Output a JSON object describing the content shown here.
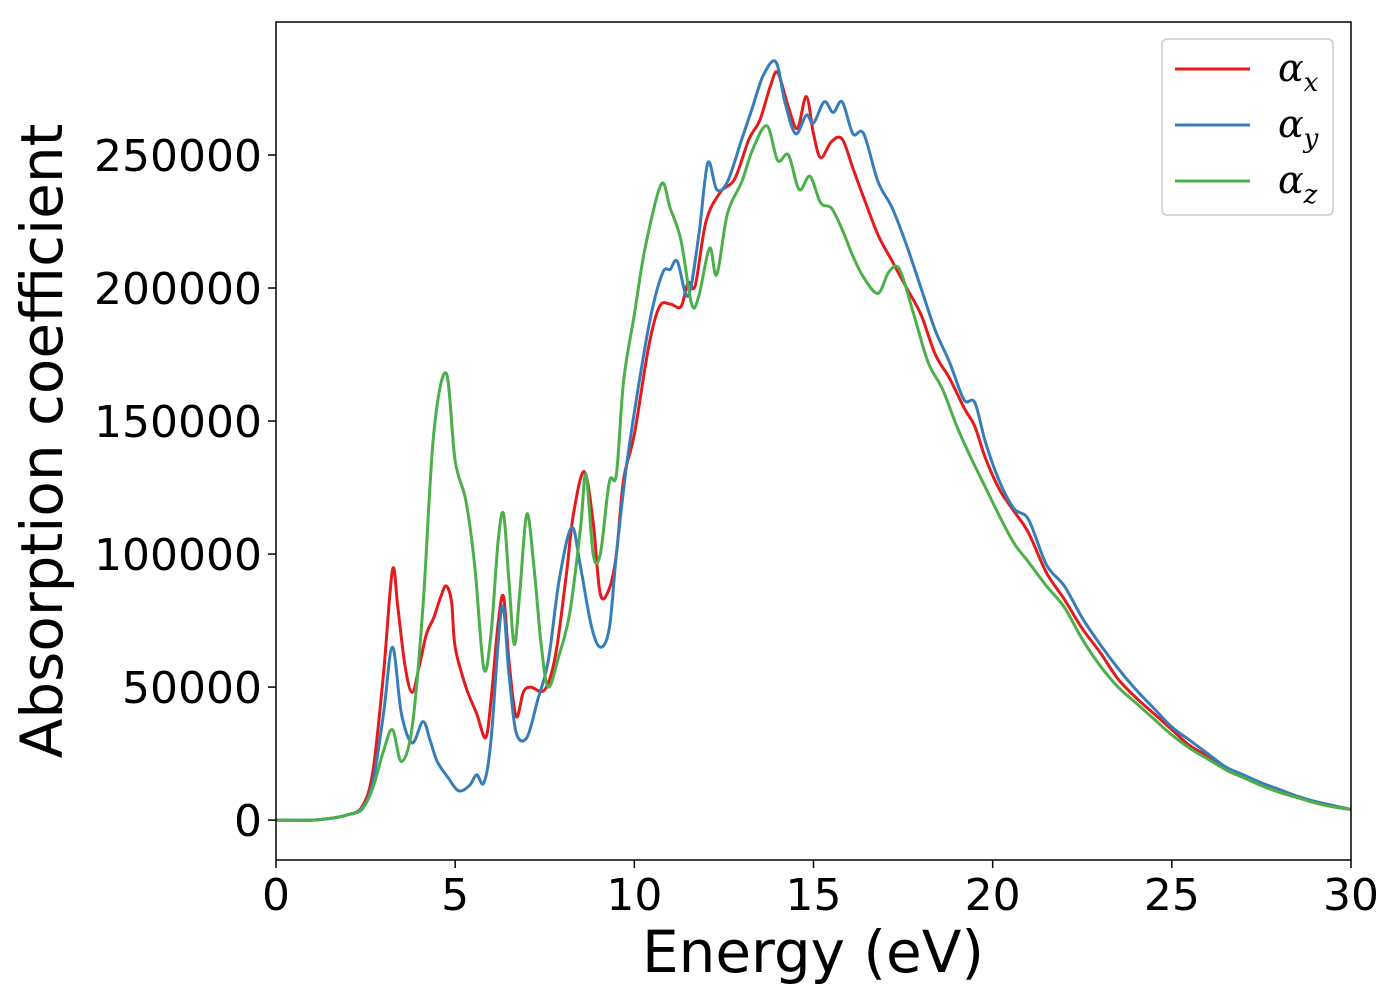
{
  "chart_data": {
    "type": "line",
    "title": "",
    "xlabel": "Energy (eV)",
    "ylabel": "Absorption coefficient",
    "xlim": [
      0,
      30
    ],
    "ylim": [
      -15000,
      300000
    ],
    "xticks": [
      0,
      5,
      10,
      15,
      20,
      25,
      30
    ],
    "yticks": [
      0,
      50000,
      100000,
      150000,
      200000,
      250000
    ],
    "xtick_labels": [
      "0",
      "5",
      "10",
      "15",
      "20",
      "25",
      "30"
    ],
    "ytick_labels": [
      "0",
      "50000",
      "100000",
      "150000",
      "200000",
      "250000"
    ],
    "grid": false,
    "legend_position": "top-right",
    "series": [
      {
        "name": "α",
        "subscript": "x",
        "color": "#e41a1c",
        "points": [
          [
            0,
            0
          ],
          [
            1,
            0
          ],
          [
            1.6,
            800
          ],
          [
            2,
            2000
          ],
          [
            2.4,
            5000
          ],
          [
            2.7,
            18000
          ],
          [
            3.0,
            55000
          ],
          [
            3.25,
            94000
          ],
          [
            3.4,
            80000
          ],
          [
            3.6,
            58000
          ],
          [
            3.8,
            48000
          ],
          [
            4.0,
            58000
          ],
          [
            4.2,
            70000
          ],
          [
            4.4,
            76000
          ],
          [
            4.6,
            84000
          ],
          [
            4.75,
            88000
          ],
          [
            4.9,
            82000
          ],
          [
            5.0,
            65000
          ],
          [
            5.3,
            50000
          ],
          [
            5.6,
            40000
          ],
          [
            5.85,
            31000
          ],
          [
            6.0,
            45000
          ],
          [
            6.2,
            74000
          ],
          [
            6.35,
            84000
          ],
          [
            6.5,
            60000
          ],
          [
            6.7,
            39000
          ],
          [
            6.9,
            48000
          ],
          [
            7.1,
            50000
          ],
          [
            7.5,
            49000
          ],
          [
            7.8,
            62000
          ],
          [
            8.1,
            92000
          ],
          [
            8.3,
            115000
          ],
          [
            8.6,
            131000
          ],
          [
            8.85,
            112000
          ],
          [
            9.05,
            85000
          ],
          [
            9.3,
            87000
          ],
          [
            9.5,
            100000
          ],
          [
            9.7,
            128000
          ],
          [
            10.0,
            145000
          ],
          [
            10.4,
            178000
          ],
          [
            10.7,
            193000
          ],
          [
            11.0,
            194000
          ],
          [
            11.3,
            193000
          ],
          [
            11.5,
            202000
          ],
          [
            11.7,
            201000
          ],
          [
            12.0,
            225000
          ],
          [
            12.4,
            236000
          ],
          [
            12.8,
            241000
          ],
          [
            13.2,
            256000
          ],
          [
            13.5,
            263000
          ],
          [
            13.8,
            276000
          ],
          [
            14.0,
            281000
          ],
          [
            14.3,
            268000
          ],
          [
            14.55,
            260000
          ],
          [
            14.8,
            272000
          ],
          [
            15.0,
            258000
          ],
          [
            15.2,
            249000
          ],
          [
            15.5,
            255000
          ],
          [
            15.8,
            256000
          ],
          [
            16.1,
            245000
          ],
          [
            16.4,
            234000
          ],
          [
            16.8,
            220000
          ],
          [
            17.2,
            210000
          ],
          [
            17.6,
            200000
          ],
          [
            18.0,
            190000
          ],
          [
            18.4,
            175000
          ],
          [
            18.8,
            166000
          ],
          [
            19.2,
            155000
          ],
          [
            19.5,
            148000
          ],
          [
            19.8,
            136000
          ],
          [
            20.2,
            124000
          ],
          [
            20.6,
            116000
          ],
          [
            21.0,
            108000
          ],
          [
            21.5,
            93000
          ],
          [
            22.0,
            83000
          ],
          [
            22.5,
            72000
          ],
          [
            23.0,
            63000
          ],
          [
            23.5,
            53000
          ],
          [
            24.0,
            46000
          ],
          [
            24.5,
            40000
          ],
          [
            25.0,
            34000
          ],
          [
            25.5,
            28000
          ],
          [
            26.0,
            24000
          ],
          [
            26.5,
            19000
          ],
          [
            27.0,
            16000
          ],
          [
            27.5,
            13000
          ],
          [
            28.0,
            10500
          ],
          [
            28.5,
            8500
          ],
          [
            29.0,
            6500
          ],
          [
            29.5,
            5000
          ],
          [
            30.0,
            4000
          ]
        ]
      },
      {
        "name": "α",
        "subscript": "y",
        "color": "#377eb8",
        "points": [
          [
            0,
            0
          ],
          [
            1,
            0
          ],
          [
            1.6,
            800
          ],
          [
            2,
            2000
          ],
          [
            2.4,
            4500
          ],
          [
            2.7,
            14000
          ],
          [
            3.0,
            40000
          ],
          [
            3.25,
            65000
          ],
          [
            3.5,
            40000
          ],
          [
            3.8,
            29000
          ],
          [
            4.1,
            37000
          ],
          [
            4.3,
            30000
          ],
          [
            4.5,
            22000
          ],
          [
            4.8,
            16000
          ],
          [
            5.1,
            11000
          ],
          [
            5.4,
            13000
          ],
          [
            5.6,
            17000
          ],
          [
            5.8,
            14000
          ],
          [
            6.0,
            30000
          ],
          [
            6.3,
            80000
          ],
          [
            6.5,
            55000
          ],
          [
            6.7,
            33000
          ],
          [
            7.0,
            31000
          ],
          [
            7.3,
            45000
          ],
          [
            7.6,
            60000
          ],
          [
            7.9,
            90000
          ],
          [
            8.25,
            110000
          ],
          [
            8.5,
            95000
          ],
          [
            8.8,
            73000
          ],
          [
            9.05,
            65000
          ],
          [
            9.3,
            72000
          ],
          [
            9.5,
            100000
          ],
          [
            9.8,
            135000
          ],
          [
            10.2,
            170000
          ],
          [
            10.5,
            192000
          ],
          [
            10.8,
            206000
          ],
          [
            11.0,
            207000
          ],
          [
            11.2,
            210000
          ],
          [
            11.5,
            197000
          ],
          [
            11.8,
            220000
          ],
          [
            12.05,
            247000
          ],
          [
            12.3,
            237000
          ],
          [
            12.6,
            240000
          ],
          [
            13.0,
            256000
          ],
          [
            13.3,
            268000
          ],
          [
            13.6,
            280000
          ],
          [
            13.95,
            285000
          ],
          [
            14.2,
            270000
          ],
          [
            14.5,
            258000
          ],
          [
            14.8,
            265000
          ],
          [
            15.0,
            262000
          ],
          [
            15.3,
            270000
          ],
          [
            15.55,
            266000
          ],
          [
            15.8,
            270000
          ],
          [
            16.1,
            258000
          ],
          [
            16.4,
            258000
          ],
          [
            16.8,
            240000
          ],
          [
            17.2,
            230000
          ],
          [
            17.6,
            216000
          ],
          [
            18.0,
            200000
          ],
          [
            18.4,
            184000
          ],
          [
            18.8,
            172000
          ],
          [
            19.2,
            158000
          ],
          [
            19.5,
            157000
          ],
          [
            19.8,
            142000
          ],
          [
            20.2,
            127000
          ],
          [
            20.6,
            117000
          ],
          [
            21.0,
            113000
          ],
          [
            21.5,
            96000
          ],
          [
            22.0,
            88000
          ],
          [
            22.5,
            76000
          ],
          [
            23.0,
            66000
          ],
          [
            23.5,
            57000
          ],
          [
            24.0,
            49000
          ],
          [
            24.5,
            42000
          ],
          [
            25.0,
            35000
          ],
          [
            25.5,
            30000
          ],
          [
            26.0,
            25000
          ],
          [
            26.5,
            20000
          ],
          [
            27.0,
            17000
          ],
          [
            27.5,
            14000
          ],
          [
            28.0,
            11500
          ],
          [
            28.5,
            9000
          ],
          [
            29.0,
            7000
          ],
          [
            29.5,
            5500
          ],
          [
            30.0,
            4000
          ]
        ]
      },
      {
        "name": "α",
        "subscript": "z",
        "color": "#4daf4a",
        "points": [
          [
            0,
            0
          ],
          [
            1,
            0
          ],
          [
            1.6,
            800
          ],
          [
            2,
            2000
          ],
          [
            2.4,
            4000
          ],
          [
            2.7,
            12000
          ],
          [
            3.0,
            26000
          ],
          [
            3.25,
            34000
          ],
          [
            3.5,
            22000
          ],
          [
            3.8,
            35000
          ],
          [
            4.1,
            80000
          ],
          [
            4.4,
            145000
          ],
          [
            4.75,
            168000
          ],
          [
            5.0,
            135000
          ],
          [
            5.3,
            120000
          ],
          [
            5.55,
            95000
          ],
          [
            5.8,
            57000
          ],
          [
            6.0,
            70000
          ],
          [
            6.2,
            105000
          ],
          [
            6.35,
            115000
          ],
          [
            6.5,
            90000
          ],
          [
            6.65,
            66000
          ],
          [
            6.8,
            85000
          ],
          [
            7.0,
            115000
          ],
          [
            7.2,
            95000
          ],
          [
            7.4,
            66000
          ],
          [
            7.6,
            50000
          ],
          [
            7.9,
            62000
          ],
          [
            8.2,
            78000
          ],
          [
            8.5,
            110000
          ],
          [
            8.65,
            130000
          ],
          [
            8.85,
            100000
          ],
          [
            9.05,
            100000
          ],
          [
            9.3,
            127000
          ],
          [
            9.5,
            130000
          ],
          [
            9.7,
            165000
          ],
          [
            10.0,
            190000
          ],
          [
            10.3,
            215000
          ],
          [
            10.75,
            239000
          ],
          [
            11.0,
            230000
          ],
          [
            11.3,
            218000
          ],
          [
            11.6,
            194000
          ],
          [
            11.8,
            197000
          ],
          [
            12.1,
            215000
          ],
          [
            12.3,
            205000
          ],
          [
            12.6,
            228000
          ],
          [
            13.0,
            240000
          ],
          [
            13.3,
            252000
          ],
          [
            13.7,
            261000
          ],
          [
            14.0,
            248000
          ],
          [
            14.3,
            250000
          ],
          [
            14.6,
            237000
          ],
          [
            14.9,
            242000
          ],
          [
            15.2,
            232000
          ],
          [
            15.5,
            230000
          ],
          [
            15.8,
            222000
          ],
          [
            16.1,
            212000
          ],
          [
            16.4,
            204000
          ],
          [
            16.8,
            198000
          ],
          [
            17.1,
            206000
          ],
          [
            17.4,
            207000
          ],
          [
            17.8,
            190000
          ],
          [
            18.2,
            172000
          ],
          [
            18.6,
            162000
          ],
          [
            19.0,
            148000
          ],
          [
            19.4,
            136000
          ],
          [
            19.8,
            125000
          ],
          [
            20.2,
            114000
          ],
          [
            20.6,
            104000
          ],
          [
            21.0,
            97000
          ],
          [
            21.5,
            88000
          ],
          [
            22.0,
            80000
          ],
          [
            22.5,
            68000
          ],
          [
            23.0,
            58000
          ],
          [
            23.5,
            50000
          ],
          [
            24.0,
            44000
          ],
          [
            24.5,
            38000
          ],
          [
            25.0,
            32000
          ],
          [
            25.5,
            27000
          ],
          [
            26.0,
            23000
          ],
          [
            26.5,
            19000
          ],
          [
            27.0,
            16000
          ],
          [
            27.5,
            13000
          ],
          [
            28.0,
            10500
          ],
          [
            28.5,
            8500
          ],
          [
            29.0,
            6500
          ],
          [
            29.5,
            5000
          ],
          [
            30.0,
            4000
          ]
        ]
      }
    ]
  }
}
